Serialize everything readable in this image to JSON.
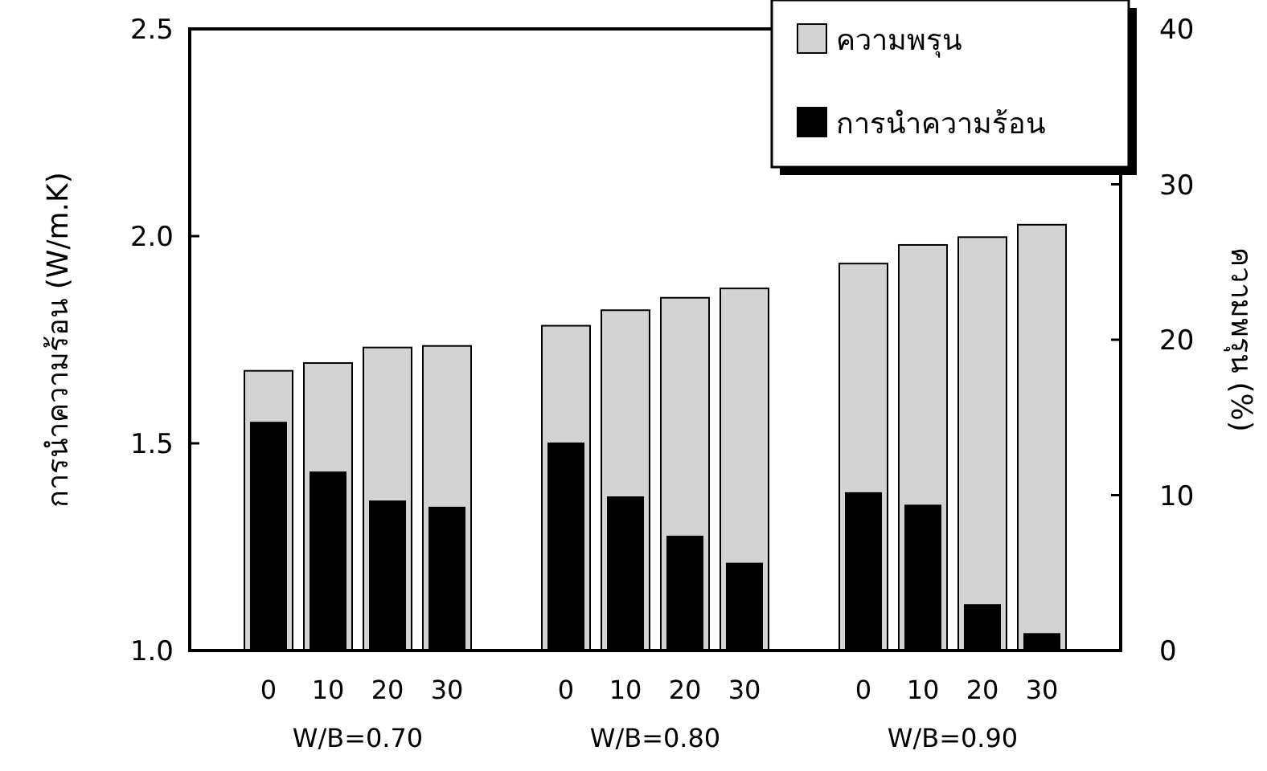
{
  "chart_data": {
    "type": "bar",
    "categories": [
      "0",
      "10",
      "20",
      "30",
      null,
      "0",
      "10",
      "20",
      "30",
      null,
      "0",
      "10",
      "20",
      "30"
    ],
    "series": [
      {
        "name": "ความพรุน",
        "color": "#d3d3d3",
        "axis": "y2",
        "values": [
          18.0,
          18.5,
          19.5,
          19.6,
          null,
          20.9,
          21.9,
          22.7,
          23.3,
          null,
          24.9,
          26.1,
          26.6,
          27.4
        ]
      },
      {
        "name": "การนำความร้อน",
        "color": "#000000",
        "values": [
          1.55,
          1.43,
          1.36,
          1.345,
          null,
          1.5,
          1.37,
          1.275,
          1.21,
          null,
          1.38,
          1.35,
          1.11,
          1.04
        ]
      }
    ],
    "ylabel": "การนำความร้อน  (W/m.K)",
    "y2label": "ความพรุน (%)",
    "ylim": [
      1.0,
      2.5
    ],
    "yticks": [
      {
        "value": 1.0,
        "label": "1.0"
      },
      1.5,
      {
        "value": 2.0,
        "label": "2.0"
      },
      2.5
    ],
    "y2lim": [
      0,
      40
    ],
    "y2ticks": [
      0,
      10,
      20,
      30,
      40
    ],
    "legend": "top right",
    "annotations": [
      "W/B=0.70",
      "W/B=0.80",
      "W/B=0.90"
    ]
  }
}
